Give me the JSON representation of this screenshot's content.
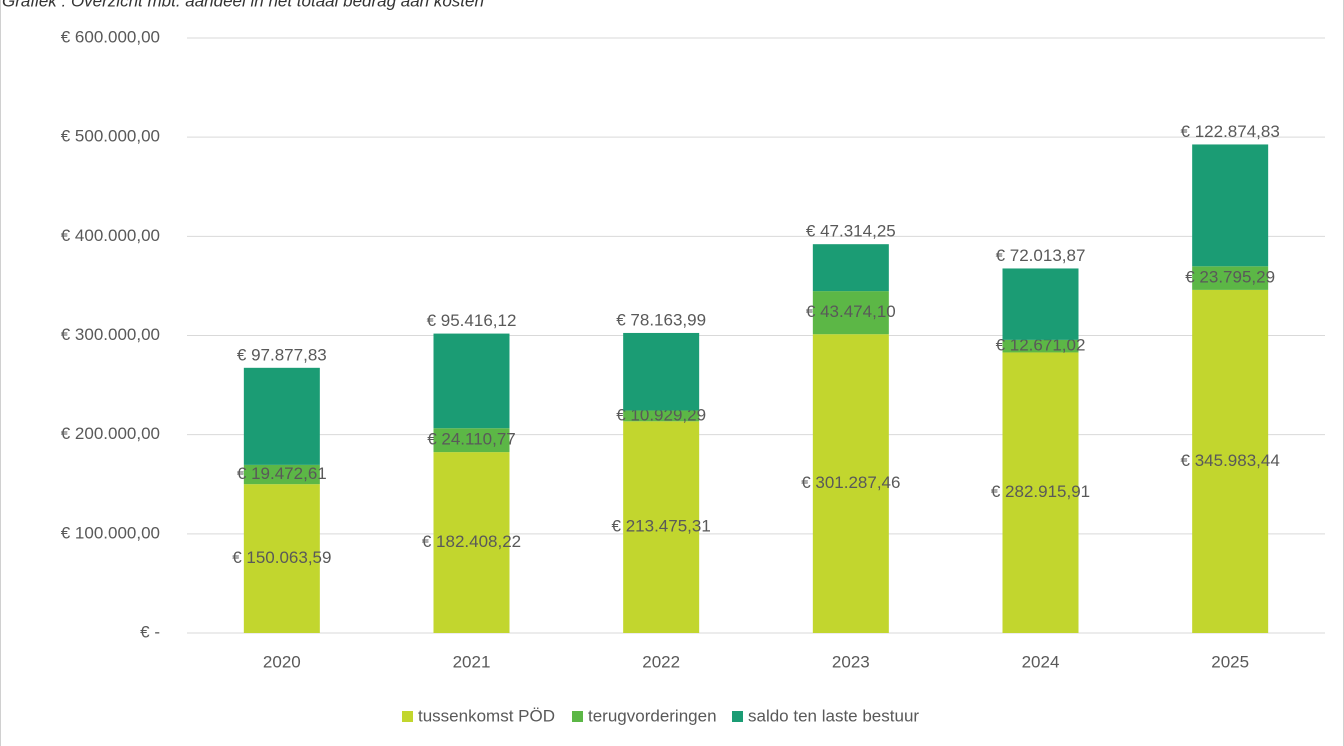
{
  "chart_data": {
    "type": "stacked_bar",
    "title": "Grafiek : Overzicht mbt. aandeel in het totaal bedrag aan kosten",
    "categories": [
      "2020",
      "2021",
      "2022",
      "2023",
      "2024",
      "2025"
    ],
    "series": [
      {
        "name": "tussenkomst PÖD",
        "color": "#c2d62e",
        "values": [
          150063.59,
          182408.22,
          213475.31,
          301287.46,
          282915.91,
          345983.44
        ],
        "value_labels": [
          "€ 150.063,59",
          "€ 182.408,22",
          "€ 213.475,31",
          "€ 301.287,46",
          "€ 282.915,91",
          "€ 345.983,44"
        ]
      },
      {
        "name": "terugvorderingen",
        "color": "#5cb746",
        "values": [
          19472.61,
          24110.77,
          10929.29,
          43474.1,
          12671.02,
          23795.29
        ],
        "value_labels": [
          "€ 19.472,61",
          "€ 24.110,77",
          "€ 10.929,29",
          "€ 43.474,10",
          "€ 12.671,02",
          "€ 23.795,29"
        ]
      },
      {
        "name": "saldo ten laste bestuur",
        "color": "#1b9c74",
        "values": [
          97877.83,
          95416.12,
          78163.99,
          47314.25,
          72013.87,
          122874.83
        ],
        "value_labels": [
          "€ 97.877,83",
          "€ 95.416,12",
          "€ 78.163,99",
          "€ 47.314,25",
          "€ 72.013,87",
          "€ 122.874,83"
        ]
      }
    ],
    "ylim": [
      0,
      600000
    ],
    "yticks": [
      {
        "value": 0,
        "label": "€ -"
      },
      {
        "value": 100000,
        "label": "€ 100.000,00"
      },
      {
        "value": 200000,
        "label": "€ 200.000,00"
      },
      {
        "value": 300000,
        "label": "€ 300.000,00"
      },
      {
        "value": 400000,
        "label": "€ 400.000,00"
      },
      {
        "value": 500000,
        "label": "€ 500.000,00"
      },
      {
        "value": 600000,
        "label": "€ 600.000,00"
      }
    ],
    "grid": true,
    "legend": "bottom"
  }
}
